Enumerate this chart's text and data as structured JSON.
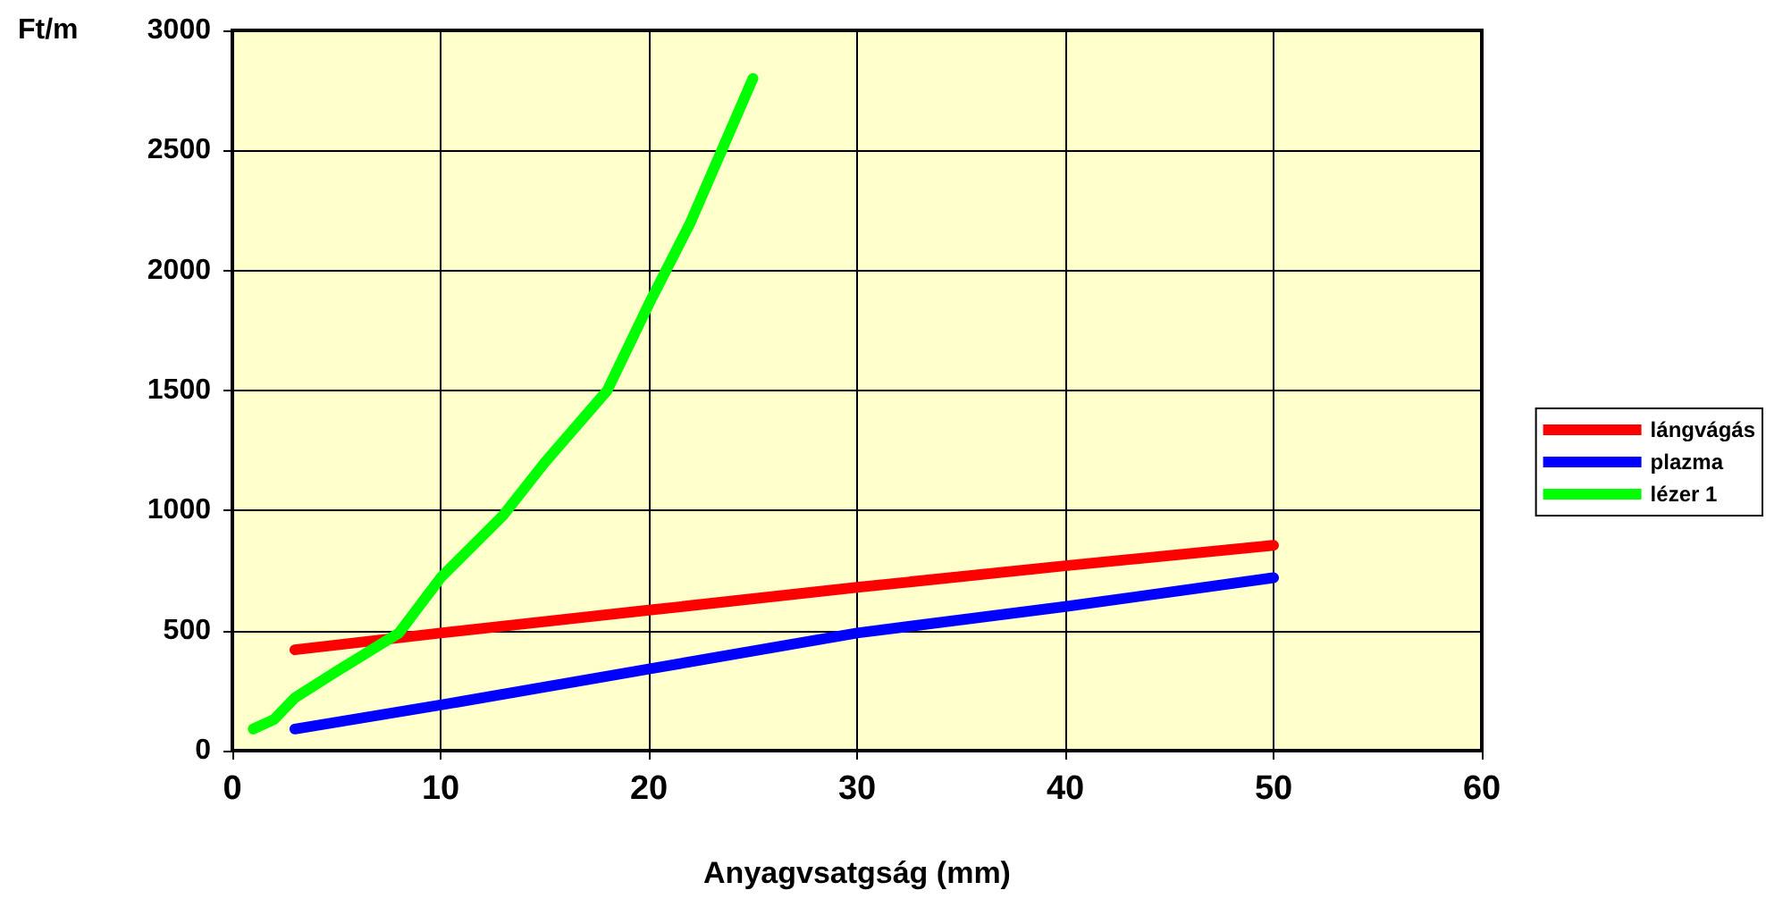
{
  "chart_data": {
    "type": "line",
    "xlabel": "Anyagvsatgság (mm)",
    "ylabel": "Ft/m",
    "xlim": [
      0,
      60
    ],
    "xticks": [
      0,
      10,
      20,
      30,
      40,
      50,
      60
    ],
    "ylim": [
      0,
      3000
    ],
    "yticks": [
      0,
      500,
      1000,
      1500,
      2000,
      2500,
      3000
    ],
    "grid": true,
    "legend": "right",
    "marker": "none",
    "line_style": "solid",
    "series": [
      {
        "name": "lángvágás",
        "color": "#ff0000",
        "x": [
          3,
          10,
          20,
          30,
          40,
          50
        ],
        "values": [
          420,
          490,
          585,
          680,
          770,
          855
        ]
      },
      {
        "name": "plazma",
        "color": "#0000ff",
        "x": [
          3,
          10,
          20,
          30,
          40,
          50
        ],
        "values": [
          90,
          190,
          340,
          490,
          600,
          720
        ]
      },
      {
        "name": "lézer 1",
        "color": "#00ff00",
        "x": [
          1,
          2,
          3,
          5,
          8,
          10,
          13,
          15,
          18,
          20,
          22,
          25
        ],
        "values": [
          90,
          130,
          220,
          330,
          490,
          720,
          980,
          1200,
          1500,
          1860,
          2200,
          2800
        ]
      }
    ]
  }
}
